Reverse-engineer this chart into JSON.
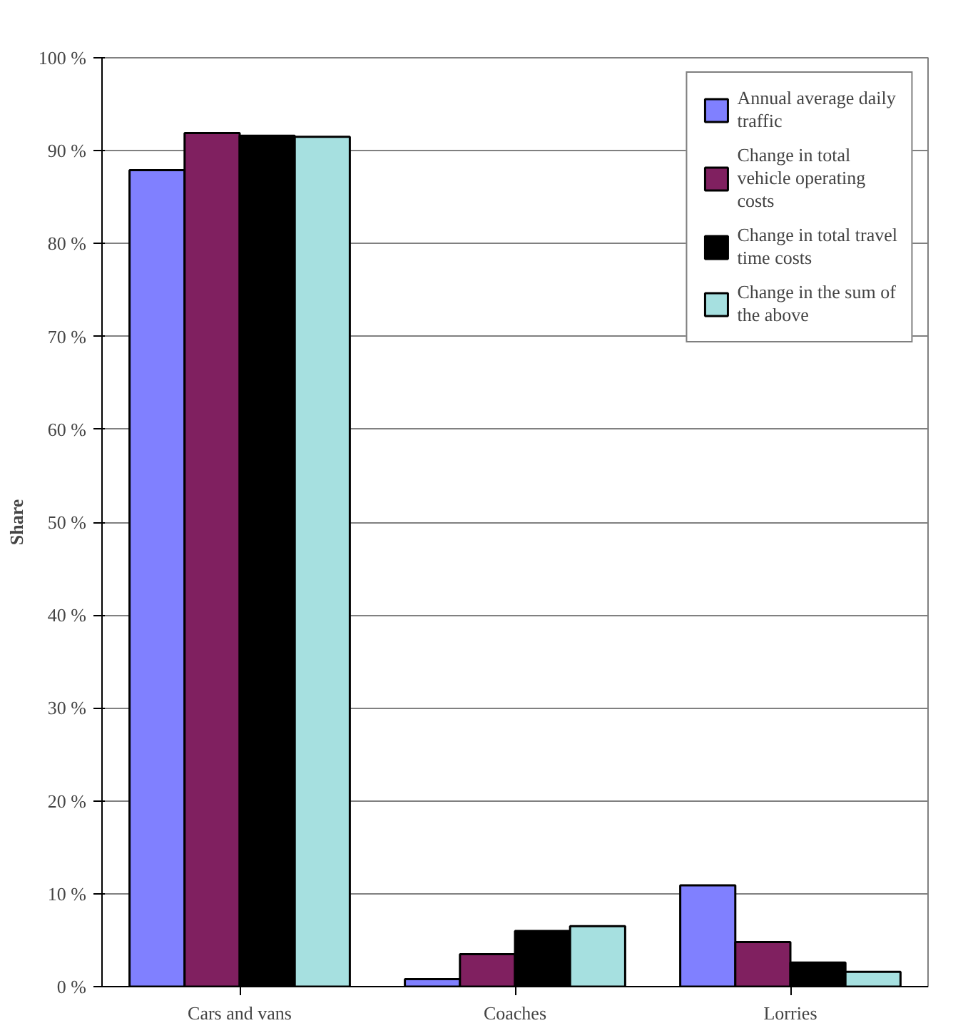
{
  "chart_data": {
    "type": "bar",
    "ylabel": "Share",
    "categories": [
      "Cars and vans",
      "Coaches",
      "Lorries"
    ],
    "series": [
      {
        "name": "Annual average daily traffic",
        "color": "#8080ff",
        "values": [
          87.9,
          0.8,
          10.9
        ]
      },
      {
        "name": "Change in total vehicle operating costs",
        "color": "#802060",
        "values": [
          91.9,
          3.5,
          4.8
        ]
      },
      {
        "name": "Change in total travel time costs",
        "color": "#000000",
        "values": [
          91.6,
          6.0,
          2.6
        ]
      },
      {
        "name": "Change in the sum of the above",
        "color": "#a6e0e0",
        "values": [
          91.5,
          6.5,
          1.6
        ]
      }
    ],
    "ylim": [
      0,
      100
    ],
    "yticks": [
      {
        "value": 0,
        "label": "0 %"
      },
      {
        "value": 10,
        "label": "10 %"
      },
      {
        "value": 20,
        "label": "20 %"
      },
      {
        "value": 30,
        "label": "30 %"
      },
      {
        "value": 40,
        "label": "40 %"
      },
      {
        "value": 50,
        "label": "50 %"
      },
      {
        "value": 60,
        "label": "60 %"
      },
      {
        "value": 70,
        "label": "70 %"
      },
      {
        "value": 80,
        "label": "80 %"
      },
      {
        "value": 90,
        "label": "90 %"
      },
      {
        "value": 100,
        "label": "100 %"
      }
    ],
    "grid": "y",
    "legend": "top right"
  }
}
